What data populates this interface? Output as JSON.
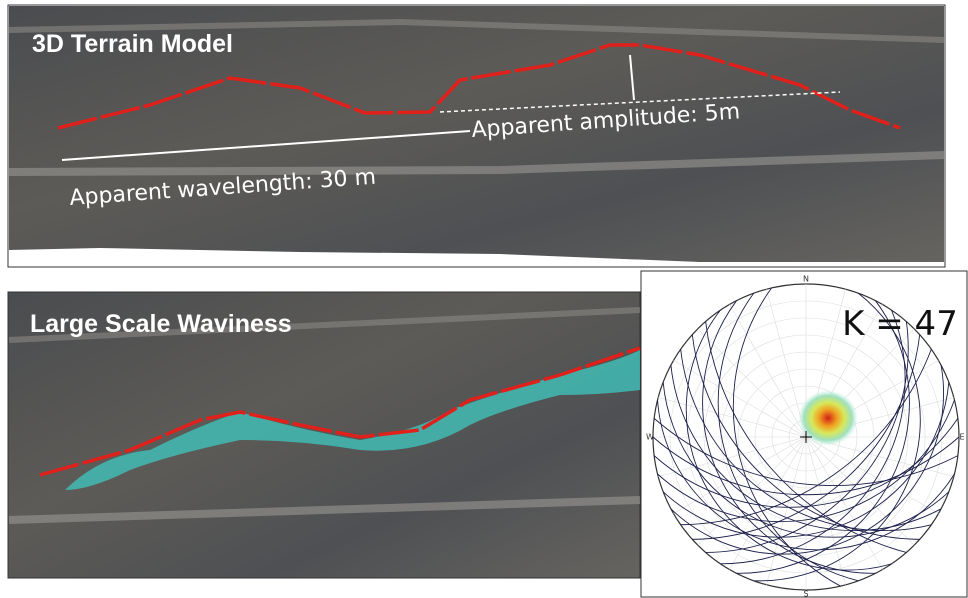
{
  "panels": [
    {
      "title": "3D Terrain Model",
      "annotations": [
        "Apparent amplitude: 5m",
        "Apparent wavelength: 30 m"
      ]
    },
    {
      "title": "Large Scale Waviness"
    }
  ],
  "stereonet": {
    "label": "K = 47",
    "directions": [
      "N",
      "S",
      "E",
      "W"
    ]
  }
}
